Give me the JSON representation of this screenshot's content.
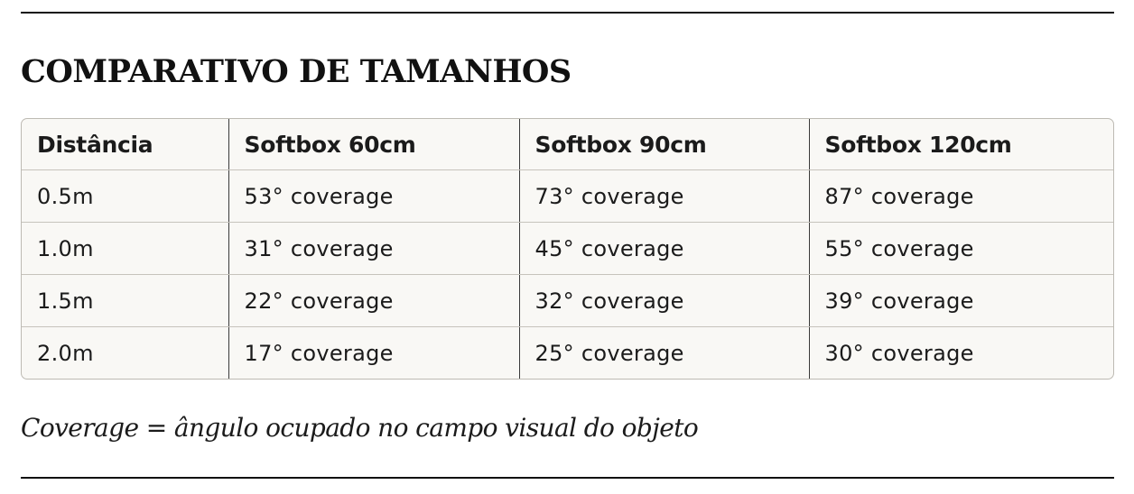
{
  "title": "COMPARATIVO DE TAMANHOS",
  "table": {
    "headers": [
      "Distância",
      "Softbox 60cm",
      "Softbox 90cm",
      "Softbox 120cm"
    ],
    "rows": [
      [
        "0.5m",
        "53° coverage",
        "73° coverage",
        "87° coverage"
      ],
      [
        "1.0m",
        "31° coverage",
        "45° coverage",
        "55° coverage"
      ],
      [
        "1.5m",
        "22° coverage",
        "32° coverage",
        "39° coverage"
      ],
      [
        "2.0m",
        "17° coverage",
        "25° coverage",
        "30° coverage"
      ]
    ]
  },
  "note": "Coverage = ângulo ocupado no campo visual do objeto"
}
